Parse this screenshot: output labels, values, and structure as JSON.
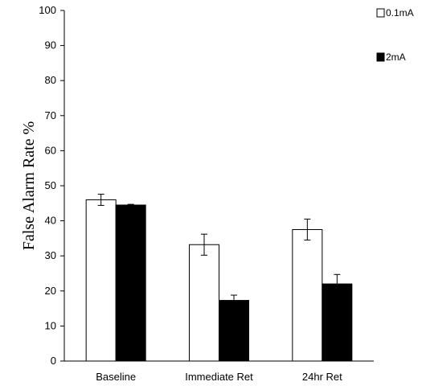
{
  "chart_data": {
    "type": "bar",
    "categories": [
      "Baseline",
      "Immediate Ret",
      "24hr Ret"
    ],
    "series": [
      {
        "name": "0.1mA",
        "values": [
          46,
          33.2,
          37.5
        ],
        "errors": [
          1.6,
          3.0,
          3.0
        ],
        "color": "#ffffff"
      },
      {
        "name": "2mA",
        "values": [
          44.5,
          17.3,
          22.0
        ],
        "errors": [
          0.2,
          1.5,
          2.7
        ],
        "color": "#000000"
      }
    ],
    "title": "",
    "xlabel": "",
    "ylabel": "False Alarm Rate %",
    "ylim": [
      0,
      100
    ],
    "yticks": [
      0,
      10,
      20,
      30,
      40,
      50,
      60,
      70,
      80,
      90,
      100
    ],
    "legend_position": "top-right",
    "grid": false
  }
}
